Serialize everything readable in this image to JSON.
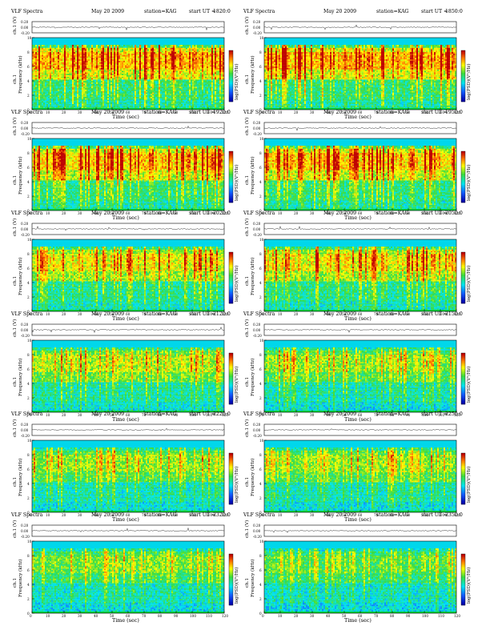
{
  "page": {
    "title_prefix": "VLF Spectra",
    "date": "May 20 2009",
    "station": "station=KAG",
    "start_prefix": "start  UT  ="
  },
  "labels": {
    "time_axis": "Time (sec)",
    "freq_axis": "Frequency (kHz)",
    "channel": "ch.1",
    "amp_axis": "ch.1 (V)",
    "colorbar": "log(PSD)(V²/Hz)",
    "amp_ticks": [
      "0.20",
      "0.00",
      "-0.20"
    ]
  },
  "chart_data": [
    {
      "type": "heatmap",
      "panel": "1",
      "start_ut": "1820:0",
      "xlabel": "Time (sec)",
      "ylabel": "Frequency (kHz)",
      "xlim": [
        0,
        120
      ],
      "ylim": [
        0,
        10
      ],
      "x_ticks": [
        "0",
        "10",
        "20",
        "30",
        "40",
        "50",
        "60",
        "70",
        "80",
        "90",
        "100",
        "110",
        "120"
      ],
      "y_ticks": [
        "0",
        "2",
        "4",
        "6",
        "8",
        "10"
      ],
      "activity": 0.85,
      "colors": {
        "low": "#1a4bd6",
        "mid": "#00ffcc",
        "high": "#ffff00",
        "peak": "#d40000"
      }
    },
    {
      "type": "heatmap",
      "panel": "2",
      "start_ut": "1850:0",
      "xlabel": "Time (sec)",
      "ylabel": "Frequency (kHz)",
      "xlim": [
        0,
        120
      ],
      "ylim": [
        0,
        10
      ],
      "x_ticks": [
        "0",
        "10",
        "20",
        "30",
        "40",
        "50",
        "60",
        "70",
        "80",
        "90",
        "100",
        "110",
        "120"
      ],
      "y_ticks": [
        "0",
        "2",
        "4",
        "6",
        "8",
        "10"
      ],
      "activity": 0.85
    },
    {
      "type": "heatmap",
      "panel": "3",
      "start_ut": "1920:0",
      "xlabel": "Time (sec)",
      "ylabel": "Frequency (kHz)",
      "xlim": [
        0,
        120
      ],
      "ylim": [
        0,
        10
      ],
      "x_ticks": [
        "0",
        "10",
        "20",
        "30",
        "40",
        "50",
        "60",
        "70",
        "80",
        "90",
        "100",
        "110",
        "120"
      ],
      "y_ticks": [
        "0",
        "2",
        "4",
        "6",
        "8",
        "10"
      ],
      "activity": 0.8
    },
    {
      "type": "heatmap",
      "panel": "4",
      "start_ut": "1950:0",
      "xlabel": "Time (sec)",
      "ylabel": "Frequency (kHz)",
      "xlim": [
        0,
        120
      ],
      "ylim": [
        0,
        10
      ],
      "x_ticks": [
        "0",
        "10",
        "20",
        "30",
        "40",
        "50",
        "60",
        "70",
        "80",
        "90",
        "100",
        "110",
        "120"
      ],
      "y_ticks": [
        "0",
        "2",
        "4",
        "6",
        "8",
        "10"
      ],
      "activity": 0.8
    },
    {
      "type": "heatmap",
      "panel": "5",
      "start_ut": "2020:0",
      "xlabel": "Time (sec)",
      "ylabel": "Frequency (kHz)",
      "xlim": [
        0,
        120
      ],
      "ylim": [
        0,
        10
      ],
      "x_ticks": [
        "0",
        "10",
        "20",
        "30",
        "40",
        "50",
        "60",
        "70",
        "80",
        "90",
        "100",
        "110",
        "120"
      ],
      "y_ticks": [
        "0",
        "2",
        "4",
        "6",
        "8",
        "10"
      ],
      "activity": 0.7
    },
    {
      "type": "heatmap",
      "panel": "6",
      "start_ut": "2050:0",
      "xlabel": "Time (sec)",
      "ylabel": "Frequency (kHz)",
      "xlim": [
        0,
        120
      ],
      "ylim": [
        0,
        10
      ],
      "x_ticks": [
        "0",
        "10",
        "20",
        "30",
        "40",
        "50",
        "60",
        "70",
        "80",
        "90",
        "100",
        "110",
        "120"
      ],
      "y_ticks": [
        "0",
        "2",
        "4",
        "6",
        "8",
        "10"
      ],
      "activity": 0.7
    },
    {
      "type": "heatmap",
      "panel": "7",
      "start_ut": "2120:0",
      "xlabel": "Time (sec)",
      "ylabel": "Frequency (kHz)",
      "xlim": [
        0,
        120
      ],
      "ylim": [
        0,
        10
      ],
      "x_ticks": [
        "0",
        "10",
        "20",
        "30",
        "40",
        "50",
        "60",
        "70",
        "80",
        "90",
        "100",
        "110",
        "120"
      ],
      "y_ticks": [
        "0",
        "2",
        "4",
        "6",
        "8",
        "10"
      ],
      "activity": 0.6
    },
    {
      "type": "heatmap",
      "panel": "8",
      "start_ut": "2150:0",
      "xlabel": "Time (sec)",
      "ylabel": "Frequency (kHz)",
      "xlim": [
        0,
        120
      ],
      "ylim": [
        0,
        10
      ],
      "x_ticks": [
        "0",
        "10",
        "20",
        "30",
        "40",
        "50",
        "60",
        "70",
        "80",
        "90",
        "100",
        "110",
        "120"
      ],
      "y_ticks": [
        "0",
        "2",
        "4",
        "6",
        "8",
        "10"
      ],
      "activity": 0.55
    },
    {
      "type": "heatmap",
      "panel": "9",
      "start_ut": "2220:0",
      "xlabel": "Time (sec)",
      "ylabel": "Frequency (kHz)",
      "xlim": [
        0,
        120
      ],
      "ylim": [
        0,
        10
      ],
      "x_ticks": [
        "0",
        "10",
        "20",
        "30",
        "40",
        "50",
        "60",
        "70",
        "80",
        "90",
        "100",
        "110",
        "120"
      ],
      "y_ticks": [
        "0",
        "2",
        "4",
        "6",
        "8",
        "10"
      ],
      "activity": 0.55
    },
    {
      "type": "heatmap",
      "panel": "10",
      "start_ut": "2250:0",
      "xlabel": "Time (sec)",
      "ylabel": "Frequency (kHz)",
      "xlim": [
        0,
        120
      ],
      "ylim": [
        0,
        10
      ],
      "x_ticks": [
        "0",
        "10",
        "20",
        "30",
        "40",
        "50",
        "60",
        "70",
        "80",
        "90",
        "100",
        "110",
        "120"
      ],
      "y_ticks": [
        "0",
        "2",
        "4",
        "6",
        "8",
        "10"
      ],
      "activity": 0.55
    },
    {
      "type": "heatmap",
      "panel": "11",
      "start_ut": "2320:0",
      "xlabel": "Time (sec)",
      "ylabel": "Frequency (kHz)",
      "xlim": [
        0,
        120
      ],
      "ylim": [
        0,
        10
      ],
      "x_ticks": [
        "0",
        "10",
        "20",
        "30",
        "40",
        "50",
        "60",
        "70",
        "80",
        "90",
        "100",
        "110",
        "120"
      ],
      "y_ticks": [
        "0",
        "2",
        "4",
        "6",
        "8",
        "10"
      ],
      "activity": 0.5
    },
    {
      "type": "heatmap",
      "panel": "12",
      "start_ut": "2350:0",
      "xlabel": "Time (sec)",
      "ylabel": "Frequency (kHz)",
      "xlim": [
        0,
        120
      ],
      "ylim": [
        0,
        10
      ],
      "x_ticks": [
        "0",
        "10",
        "20",
        "30",
        "40",
        "50",
        "60",
        "70",
        "80",
        "90",
        "100",
        "110",
        "120"
      ],
      "y_ticks": [
        "0",
        "2",
        "4",
        "6",
        "8",
        "10"
      ],
      "activity": 0.45
    }
  ]
}
